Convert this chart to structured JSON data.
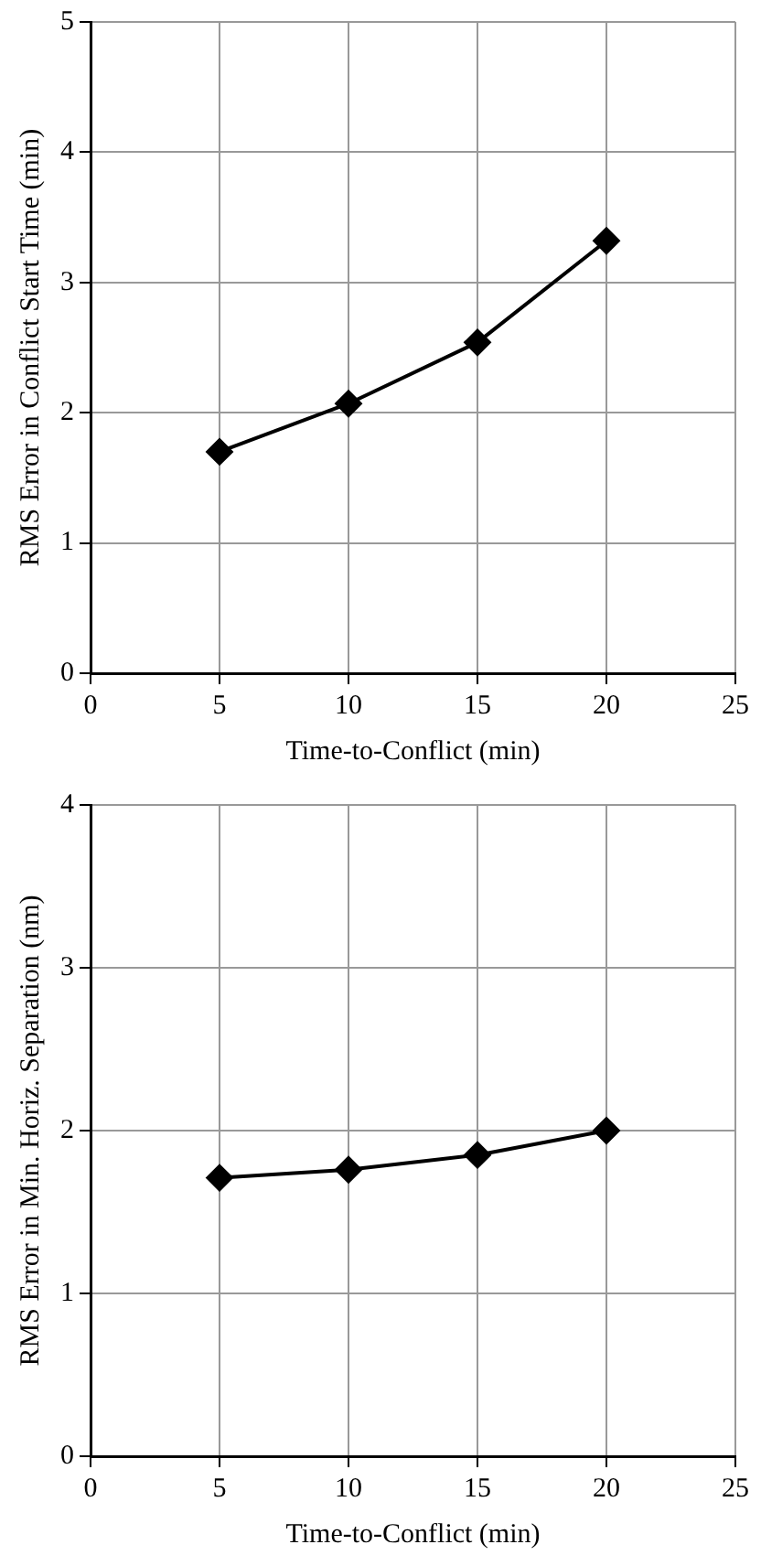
{
  "chart_data": [
    {
      "type": "line",
      "xlabel": "Time-to-Conflict (min)",
      "ylabel": "RMS Error in Conflict Start Time (min)",
      "x": [
        5,
        10,
        15,
        20
      ],
      "xlim": [
        0,
        25
      ],
      "xticks": [
        0,
        5,
        10,
        15,
        20,
        25
      ],
      "ylim": [
        0,
        5
      ],
      "yticks": [
        0,
        1,
        2,
        3,
        4,
        5
      ],
      "grid": true,
      "marker": "diamond",
      "line_style": "solid",
      "series": [
        {
          "color": "#000000",
          "values": [
            1.7,
            2.07,
            2.54,
            3.32
          ]
        }
      ]
    },
    {
      "type": "line",
      "xlabel": "Time-to-Conflict (min)",
      "ylabel": "RMS Error in Min. Horiz. Separation (nm)",
      "x": [
        5,
        10,
        15,
        20
      ],
      "xlim": [
        0,
        25
      ],
      "xticks": [
        0,
        5,
        10,
        15,
        20,
        25
      ],
      "ylim": [
        0,
        4
      ],
      "yticks": [
        0,
        1,
        2,
        3,
        4
      ],
      "grid": true,
      "marker": "diamond",
      "line_style": "solid",
      "series": [
        {
          "color": "#000000",
          "values": [
            1.71,
            1.76,
            1.85,
            2.0
          ]
        }
      ]
    }
  ]
}
